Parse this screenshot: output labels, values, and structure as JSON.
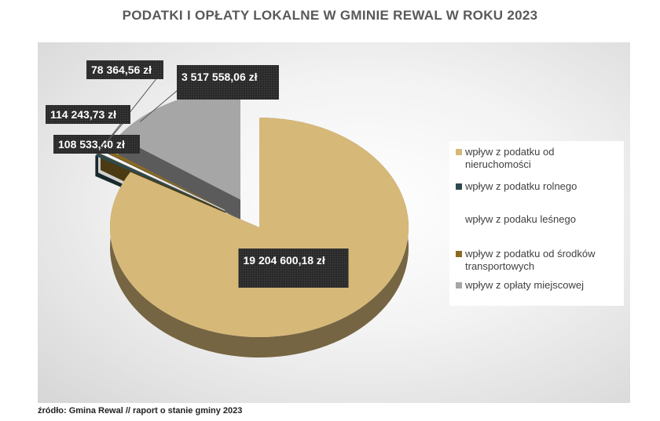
{
  "chart_data": {
    "type": "pie",
    "title": "PODATKI I OPŁATY LOKALNE W GMINIE REWAL W ROKU 2023",
    "categories": [
      "wpływ  z podatku od nieruchomości",
      "wpływ z podatku rolnego",
      "wpływ z podaku leśnego",
      "wpływ z podatku od środków transportowych",
      "wpływ z opłaty miejscowej"
    ],
    "values": [
      19204600.18,
      108533.4,
      78364.56,
      114243.73,
      3517558.06
    ],
    "labels": [
      "19 204 600,18  zł",
      "108 533,40 zł",
      "78 364,56 zł",
      "114 243,73 zł",
      "3 517 558,06 zł"
    ],
    "colors": [
      "#d6b878",
      "#2c4a4e",
      "#ffffff",
      "#8b6a22",
      "#a6a6a6"
    ],
    "legend_position": "right"
  },
  "legend": {
    "items": [
      {
        "line1": "wpływ  z podatku od",
        "line2": "nieruchomości"
      },
      {
        "line1": "wpływ z podatku rolnego",
        "line2": ""
      },
      {
        "line1": "wpływ z podaku leśnego",
        "line2": ""
      },
      {
        "line1": "wpływ z podatku od środków",
        "line2": "transportowych"
      },
      {
        "line1": "wpływ z opłaty miejscowej",
        "line2": ""
      }
    ]
  },
  "source": "źródło: Gmina Rewal // raport o stanie gminy 2023"
}
